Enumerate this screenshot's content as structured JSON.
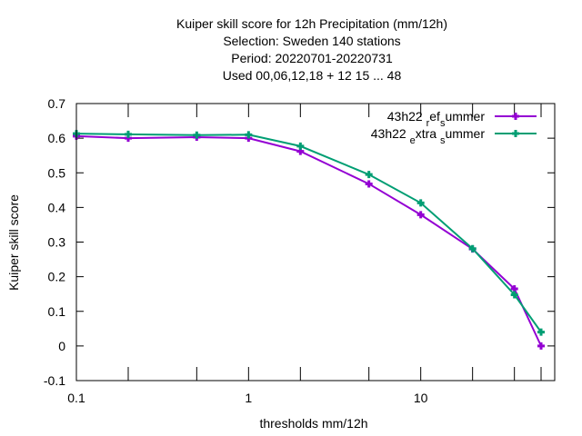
{
  "chart_data": {
    "type": "line",
    "title_lines": [
      "Kuiper skill score  for 12h Precipitation (mm/12h)",
      "Selection: Sweden    140 stations",
      "Period: 20220701-20220731",
      "Used  00,06,12,18  + 12 15 ... 48"
    ],
    "xlabel": "thresholds mm/12h",
    "ylabel": "Kuiper skill score",
    "x_scale": "log",
    "xlim": [
      0.1,
      60
    ],
    "ylim": [
      -0.1,
      0.7
    ],
    "x_tick_labels": [
      {
        "value": 0.1,
        "label": "0.1"
      },
      {
        "value": 1,
        "label": "1"
      },
      {
        "value": 10,
        "label": "10"
      }
    ],
    "x_tick_marks": [
      0.1,
      0.2,
      0.5,
      1,
      2,
      5,
      10,
      20,
      35,
      50
    ],
    "y_ticks": [
      {
        "value": -0.1,
        "label": "-0.1"
      },
      {
        "value": 0,
        "label": "0"
      },
      {
        "value": 0.1,
        "label": "0.1"
      },
      {
        "value": 0.2,
        "label": "0.2"
      },
      {
        "value": 0.3,
        "label": "0.3"
      },
      {
        "value": 0.4,
        "label": "0.4"
      },
      {
        "value": 0.5,
        "label": "0.5"
      },
      {
        "value": 0.6,
        "label": "0.6"
      },
      {
        "value": 0.7,
        "label": "0.7"
      }
    ],
    "grid": false,
    "legend_position": "top-right",
    "series": [
      {
        "name_parts": [
          {
            "text": "43h22 ",
            "shift": "none"
          },
          {
            "text": "r",
            "shift": "sub"
          },
          {
            "text": "ef",
            "shift": "none"
          },
          {
            "text": "s",
            "shift": "sub"
          },
          {
            "text": "ummer",
            "shift": "none"
          }
        ],
        "color": "#9400d3",
        "x": [
          0.1,
          0.2,
          0.5,
          1,
          2,
          5,
          10,
          20,
          35,
          50
        ],
        "y": [
          0.606,
          0.6,
          0.603,
          0.6,
          0.562,
          0.468,
          0.379,
          0.28,
          0.165,
          0.0
        ]
      },
      {
        "name_parts": [
          {
            "text": "43h22 ",
            "shift": "none"
          },
          {
            "text": "e",
            "shift": "sub"
          },
          {
            "text": "xtra ",
            "shift": "none"
          },
          {
            "text": "s",
            "shift": "sub"
          },
          {
            "text": "ummer",
            "shift": "none"
          }
        ],
        "color": "#009e73",
        "x": [
          0.1,
          0.2,
          0.5,
          1,
          2,
          5,
          10,
          20,
          35,
          50
        ],
        "y": [
          0.613,
          0.611,
          0.609,
          0.61,
          0.577,
          0.495,
          0.413,
          0.281,
          0.148,
          0.04
        ]
      }
    ]
  }
}
